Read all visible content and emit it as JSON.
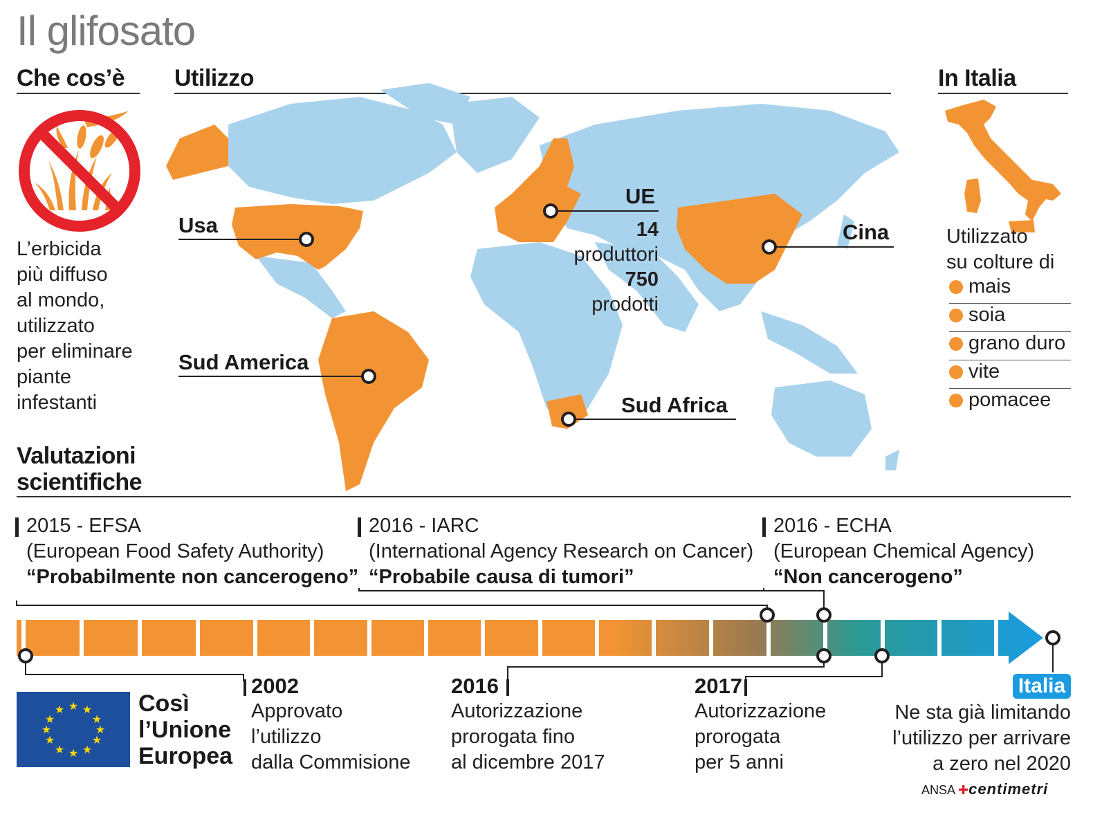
{
  "title": "Il glifosato",
  "what": {
    "heading": "Che cos’è",
    "lines": [
      "L’erbicida",
      "più diffuso",
      "al mondo,",
      "utilizzato",
      "per eliminare",
      "piante",
      "infestanti"
    ],
    "icon": "no-herbicide-icon"
  },
  "usage": {
    "heading": "Utilizzo",
    "labels": {
      "usa": "Usa",
      "sud_america": "Sud America",
      "ue": "UE",
      "ue_producers_count": "14",
      "ue_producers_label": "produttori",
      "ue_products_count": "750",
      "ue_products_label": "prodotti",
      "cina": "Cina",
      "sud_africa": "Sud Africa"
    }
  },
  "italy": {
    "heading": "In Italia",
    "intro": [
      "Utilizzato",
      "su colture di"
    ],
    "crops": [
      "mais",
      "soia",
      "grano duro",
      "vite",
      "pomacee"
    ]
  },
  "evaluations": {
    "heading": [
      "Valutazioni",
      "scientifiche"
    ],
    "items": [
      {
        "year_org": "2015 - EFSA",
        "full_name": "(European Food Safety Authority)",
        "verdict": "“Probabilmente non cancerogeno”"
      },
      {
        "year_org": "2016 - IARC",
        "full_name": "(International Agency Research on Cancer)",
        "verdict": "“Probabile causa di tumori”"
      },
      {
        "year_org": "2016 - ECHA",
        "full_name": "(European Chemical Agency)",
        "verdict": "“Non cancerogeno”"
      }
    ]
  },
  "timeline": {
    "eu_caption": [
      "Così",
      "l’Unione",
      "Europea"
    ],
    "events": [
      {
        "year": "2002",
        "desc": [
          "Approvato",
          "l’utilizzo",
          "dalla Commisione"
        ]
      },
      {
        "year": "2016",
        "desc": [
          "Autorizzazione",
          "prorogata fino",
          "al dicembre 2017"
        ]
      },
      {
        "year": "2017",
        "desc": [
          "Autorizzazione",
          "prorogata",
          "per 5 anni"
        ]
      }
    ],
    "italia": {
      "badge": "Italia",
      "desc": [
        "Ne sta già limitando",
        "l’utilizzo per arrivare",
        "a zero nel 2020"
      ]
    }
  },
  "credit": {
    "agency": "ANSA",
    "brand": "centimetri"
  },
  "colors": {
    "orange": "#f39434",
    "map_blue": "#a9d3ec",
    "accent_blue": "#1b9be0",
    "eu_blue": "#1d4f9c",
    "red": "#e4232b"
  }
}
